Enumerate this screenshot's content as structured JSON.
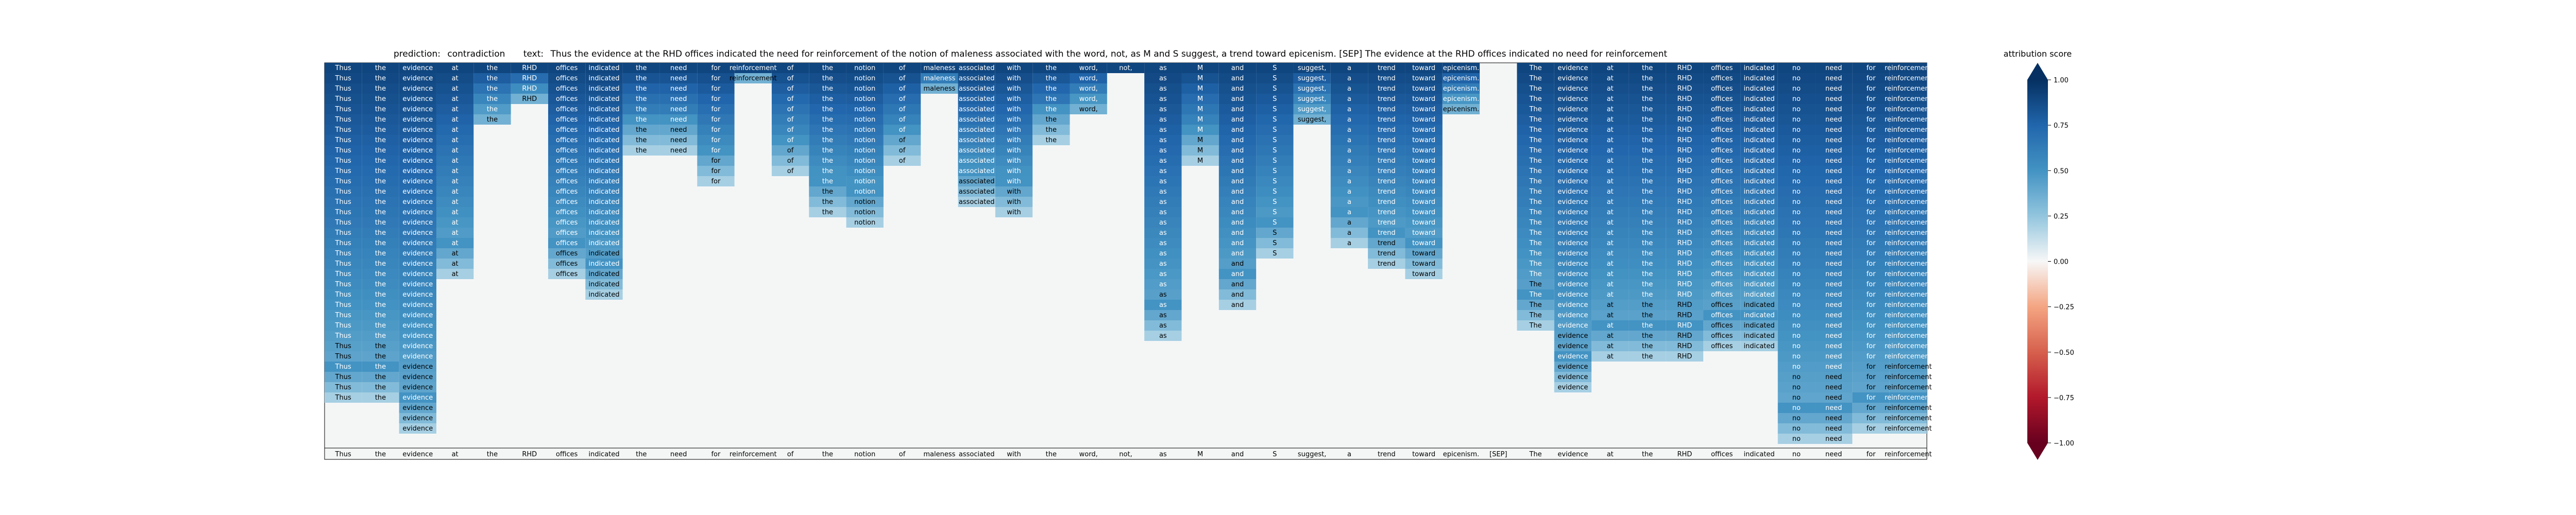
{
  "chart_data": {
    "type": "heatmap",
    "title_prediction_label": "prediction:",
    "title_prediction_value": "contradiction",
    "title_text_label": "text:",
    "title_text_value": "Thus the evidence at the RHD offices indicated the need for reinforcement of the notion of maleness associated with the word, not, as M and S suggest, a trend toward epicenism. [SEP] The evidence at the RHD offices indicated no need for reinforcement",
    "tokens": [
      "Thus",
      "the",
      "evidence",
      "at",
      "the",
      "RHD",
      "offices",
      "indicated",
      "the",
      "need",
      "for",
      "reinforcement",
      "of",
      "the",
      "notion",
      "of",
      "maleness",
      "associated",
      "with",
      "the",
      "word,",
      "not,",
      "as",
      "M",
      "and",
      "S",
      "suggest,",
      "a",
      "trend",
      "toward",
      "epicenism.",
      "[SEP]",
      "The",
      "evidence",
      "at",
      "the",
      "RHD",
      "offices",
      "indicated",
      "no",
      "need",
      "for",
      "reinforcement"
    ],
    "row_count": 37,
    "column_row_ranges": [
      [
        0,
        32
      ],
      [
        0,
        32
      ],
      [
        0,
        35
      ],
      [
        0,
        20
      ],
      [
        0,
        5
      ],
      [
        0,
        3
      ],
      [
        0,
        20
      ],
      [
        0,
        22
      ],
      [
        0,
        8
      ],
      [
        0,
        8
      ],
      [
        0,
        11
      ],
      [
        0,
        1
      ],
      [
        0,
        10
      ],
      [
        0,
        14
      ],
      [
        0,
        15
      ],
      [
        0,
        9
      ],
      [
        0,
        2
      ],
      [
        0,
        13
      ],
      [
        0,
        14
      ],
      [
        0,
        7
      ],
      [
        0,
        4
      ],
      [
        0,
        0
      ],
      [
        0,
        26
      ],
      [
        0,
        9
      ],
      [
        0,
        23
      ],
      [
        0,
        18
      ],
      [
        0,
        5
      ],
      [
        0,
        17
      ],
      [
        0,
        19
      ],
      [
        0,
        20
      ],
      [
        0,
        4
      ],
      null,
      [
        0,
        25
      ],
      [
        0,
        31
      ],
      [
        0,
        28
      ],
      [
        0,
        28
      ],
      [
        0,
        28
      ],
      [
        0,
        27
      ],
      [
        0,
        27
      ],
      [
        0,
        36
      ],
      [
        0,
        36
      ],
      [
        0,
        35
      ],
      [
        0,
        35
      ]
    ],
    "value_model": "score = 0.85 - 0.05*row with per-column overrides; fading toward 0.2 near bottom of each column",
    "colorbar_label": "attribution score",
    "colorbar_ticks": [
      "1.00",
      "0.75",
      "0.50",
      "0.25",
      "0.00",
      "−0.25",
      "−0.50",
      "−0.75",
      "−1.00"
    ],
    "colorbar_range": [
      -1.0,
      1.0
    ],
    "colormap": "RdBu",
    "bottom_row_tokens_shown": true
  }
}
